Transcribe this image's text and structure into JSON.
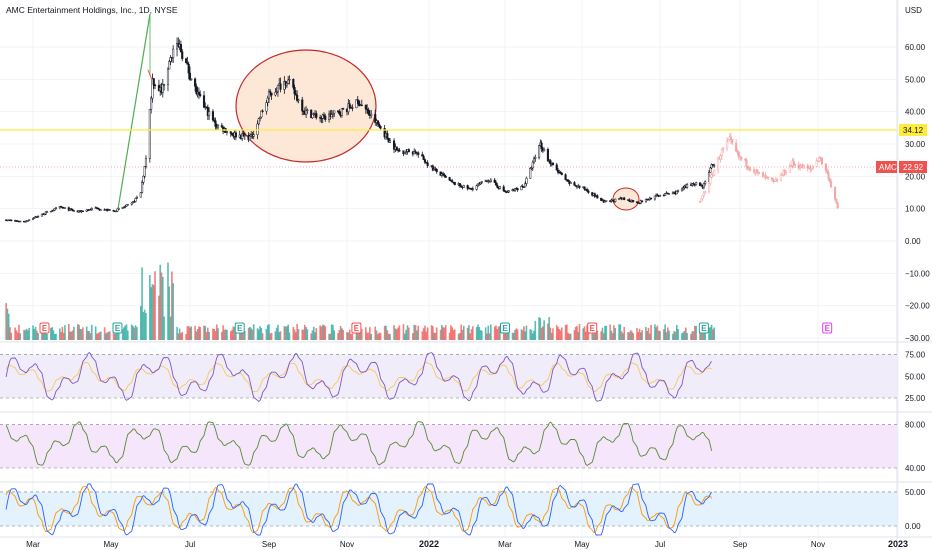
{
  "chart_data": {
    "type": "candlestick",
    "title": "AMC Entertainment Holdings, Inc., 1D, NYSE",
    "currency": "USD",
    "price_axis": {
      "ticks": [
        "60.00",
        "50.00",
        "40.00",
        "30.00",
        "20.00",
        "10.00",
        "0.00",
        "−10.00",
        "−20.00",
        "−30.00"
      ],
      "range": [
        -30,
        70
      ]
    },
    "time_axis": {
      "labels": [
        "Mar",
        "May",
        "Jul",
        "Sep",
        "Nov",
        "2022",
        "Mar",
        "May",
        "Jul",
        "Sep",
        "Nov",
        "2023"
      ],
      "bold": [
        "2022",
        "2023"
      ]
    },
    "horizontal_level": {
      "value": 34.12,
      "label": "34.12",
      "color": "#ffeb3b"
    },
    "last_price": {
      "symbol": "AMC",
      "value": 22.92,
      "label": "22.92",
      "color": "#ef5350"
    },
    "close_series": [
      [
        "2021-02-08",
        6.5
      ],
      [
        "2021-02-22",
        6.0
      ],
      [
        "2021-03-08",
        8.2
      ],
      [
        "2021-03-22",
        10.5
      ],
      [
        "2021-04-05",
        9.0
      ],
      [
        "2021-04-19",
        10.2
      ],
      [
        "2021-05-03",
        9.2
      ],
      [
        "2021-05-17",
        11.5
      ],
      [
        "2021-05-24",
        15.0
      ],
      [
        "2021-05-28",
        26.0
      ],
      [
        "2021-06-02",
        50.0
      ],
      [
        "2021-06-09",
        46.0
      ],
      [
        "2021-06-16",
        58.0
      ],
      [
        "2021-06-23",
        60.0
      ],
      [
        "2021-07-07",
        45.0
      ],
      [
        "2021-07-21",
        36.0
      ],
      [
        "2021-08-04",
        33.0
      ],
      [
        "2021-08-18",
        32.0
      ],
      [
        "2021-09-01",
        45.0
      ],
      [
        "2021-09-15",
        50.0
      ],
      [
        "2021-09-29",
        40.0
      ],
      [
        "2021-10-13",
        38.0
      ],
      [
        "2021-10-27",
        40.0
      ],
      [
        "2021-11-10",
        43.0
      ],
      [
        "2021-11-24",
        36.0
      ],
      [
        "2021-12-08",
        28.0
      ],
      [
        "2021-12-22",
        27.5
      ],
      [
        "2022-01-05",
        22.0
      ],
      [
        "2022-01-19",
        18.0
      ],
      [
        "2022-02-02",
        16.0
      ],
      [
        "2022-02-16",
        19.0
      ],
      [
        "2022-03-02",
        15.0
      ],
      [
        "2022-03-16",
        17.0
      ],
      [
        "2022-03-29",
        30.0
      ],
      [
        "2022-04-06",
        24.0
      ],
      [
        "2022-04-20",
        18.0
      ],
      [
        "2022-05-04",
        16.0
      ],
      [
        "2022-05-18",
        12.0
      ],
      [
        "2022-06-01",
        13.0
      ],
      [
        "2022-06-15",
        12.0
      ],
      [
        "2022-06-29",
        14.0
      ],
      [
        "2022-07-13",
        15.0
      ],
      [
        "2022-07-27",
        18.0
      ],
      [
        "2022-08-03",
        17.0
      ],
      [
        "2022-08-10",
        23.0
      ],
      [
        "2022-08-12",
        22.92
      ]
    ],
    "projection_series": [
      [
        "2022-08-01",
        12.0
      ],
      [
        "2022-08-10",
        20.0
      ],
      [
        "2022-08-17",
        27.0
      ],
      [
        "2022-08-24",
        31.0
      ],
      [
        "2022-08-31",
        26.0
      ],
      [
        "2022-09-14",
        21.0
      ],
      [
        "2022-09-28",
        18.0
      ],
      [
        "2022-10-12",
        24.0
      ],
      [
        "2022-10-26",
        22.0
      ],
      [
        "2022-11-02",
        26.0
      ],
      [
        "2022-11-09",
        20.0
      ],
      [
        "2022-11-16",
        10.0
      ]
    ],
    "volume_earnings_markers": [
      "2021-03-10",
      "2021-05-06",
      "2021-08-09",
      "2021-11-08",
      "2022-03-01",
      "2022-05-09",
      "2022-08-04",
      "2022-11-08"
    ],
    "rsi": {
      "levels": [
        "75.00",
        "50.00",
        "25.00"
      ]
    },
    "indicator2": {
      "levels": [
        "80.00",
        "40.00"
      ]
    },
    "indicator3": {
      "levels": [
        "50.00",
        "0.00"
      ]
    }
  },
  "labels": {
    "title": "AMC Entertainment Holdings, Inc., 1D, NYSE",
    "currency": "USD",
    "level_value": "34.12",
    "price_symbol": "AMC",
    "price_value": "22.92",
    "earnings_letter": "E"
  },
  "colors": {
    "up": "#26a69a",
    "down": "#ef5350",
    "candle": "#131722",
    "level": "#ffeb3b",
    "ellipse_fill": "#fde8d8",
    "ellipse_stroke": "#c62828",
    "trend": "#4caf50",
    "projection": "#f4a7a7",
    "rsi": "#7e57c2",
    "rsi_ma": "#f6c95a",
    "ind2": "#558b2f",
    "stoch_k": "#2962ff",
    "stoch_d": "#ff9800"
  }
}
